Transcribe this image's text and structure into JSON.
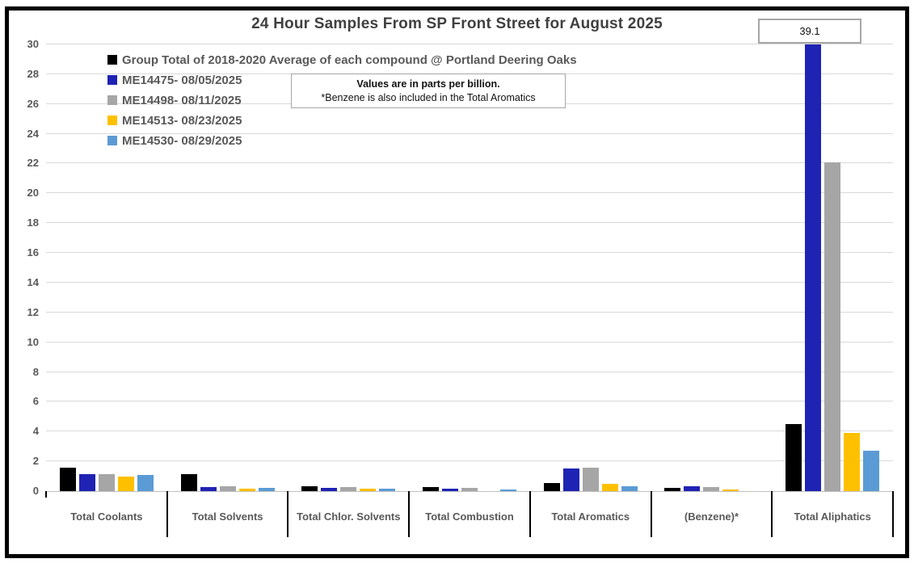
{
  "chart_data": {
    "type": "bar",
    "title": "24 Hour Samples From SP Front Street for August 2025",
    "categories": [
      "Total Coolants",
      "Total Solvents",
      "Total Chlor. Solvents",
      "Total Combustion",
      "Total Aromatics",
      "(Benzene)*",
      "Total Aliphatics"
    ],
    "series": [
      {
        "name": "Group Total of 2018-2020 Average of each compound @ Portland Deering Oaks",
        "color": "#000000",
        "values": [
          1.55,
          1.15,
          0.35,
          0.25,
          0.55,
          0.2,
          4.5
        ]
      },
      {
        "name": "ME14475- 08/05/2025",
        "color": "#1F23B4",
        "values": [
          1.15,
          0.25,
          0.2,
          0.15,
          1.5,
          0.3,
          39.1
        ]
      },
      {
        "name": "ME14498- 08/11/2025",
        "color": "#A6A6A6",
        "values": [
          1.15,
          0.35,
          0.25,
          0.2,
          1.6,
          0.25,
          22.1
        ]
      },
      {
        "name": "ME14513- 08/23/2025",
        "color": "#FFC000",
        "values": [
          1.0,
          0.15,
          0.15,
          0,
          0.5,
          0.1,
          3.9
        ]
      },
      {
        "name": "ME14530- 08/29/2025",
        "color": "#5B9BD5",
        "values": [
          1.1,
          0.2,
          0.15,
          0.1,
          0.35,
          0,
          2.7
        ]
      }
    ],
    "xlabel": "",
    "ylabel": "",
    "ylim": [
      0,
      30
    ],
    "ytick_step": 2,
    "grid": true,
    "legend_position": "top-left-inside",
    "units_note": "parts per billion",
    "annotations": {
      "callout": "39.1",
      "callout_meaning": "off-scale value of ME14475- 08/05/2025 bar in Total Aliphatics",
      "note_line1": "Values are in parts per billion.",
      "note_line2": "*Benzene is also included in the Total Aromatics"
    }
  }
}
